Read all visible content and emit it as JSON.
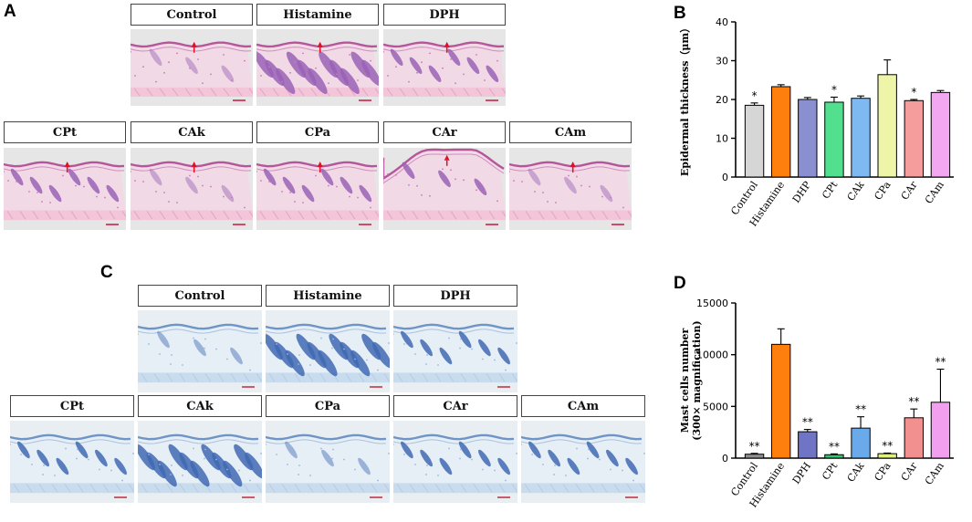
{
  "panels": {
    "A": "A",
    "B": "B",
    "C": "C",
    "D": "D"
  },
  "he_panel": {
    "row1": [
      "Control",
      "Histamine",
      "DPH"
    ],
    "row2": [
      "CPt",
      "CAk",
      "CPa",
      "CAr",
      "CAm"
    ]
  },
  "tb_panel": {
    "row1": [
      "Control",
      "Histamine",
      "DPH"
    ],
    "row2": [
      "CPt",
      "CAk",
      "CPa",
      "CAr",
      "CAm"
    ]
  },
  "colors": {
    "he_pink": "#e8bfd6",
    "tb_blue": "#d7e3ef"
  },
  "chart_data": [
    {
      "type": "bar",
      "panel": "B",
      "categories": [
        "Control",
        "Histamine",
        "DHP",
        "CPt",
        "CAk",
        "CPa",
        "CAr",
        "CAm"
      ],
      "values": [
        18.5,
        23.3,
        20.0,
        19.3,
        20.3,
        26.4,
        19.7,
        21.8
      ],
      "errors": [
        0.6,
        0.5,
        0.5,
        1.3,
        0.6,
        3.8,
        0.3,
        0.5
      ],
      "significance": [
        "*",
        "",
        "",
        "*",
        "",
        "",
        "*",
        ""
      ],
      "colors": [
        "#d6d6d6",
        "#ff7f0e",
        "#8a8fd0",
        "#52e08e",
        "#7eb9f2",
        "#eef5a8",
        "#f59c9c",
        "#f2a7f0"
      ],
      "ylabel": "Epidermal thickness（μm）",
      "ylim": [
        0,
        40
      ],
      "yticks": [
        0,
        10,
        20,
        30,
        40
      ]
    },
    {
      "type": "bar",
      "panel": "D",
      "categories": [
        "Control",
        "Histamine",
        "DPH",
        "CPt",
        "CAk",
        "CPa",
        "CAr",
        "CAm"
      ],
      "values": [
        380,
        11000,
        2550,
        330,
        2900,
        430,
        3900,
        5400
      ],
      "errors": [
        80,
        1500,
        220,
        80,
        1100,
        60,
        850,
        3200
      ],
      "significance": [
        "**",
        "",
        "**",
        "**",
        "**",
        "**",
        "**",
        "**"
      ],
      "colors": [
        "#8f8f8f",
        "#ff7f0e",
        "#6f74c4",
        "#2ec76d",
        "#6aa9ea",
        "#dff07f",
        "#f28f8f",
        "#f29ff0"
      ],
      "ylabel": "Mast cells number",
      "ylabel2": "(300× magnification)",
      "ylim": [
        0,
        15000
      ],
      "yticks": [
        0,
        5000,
        10000,
        15000
      ]
    }
  ]
}
